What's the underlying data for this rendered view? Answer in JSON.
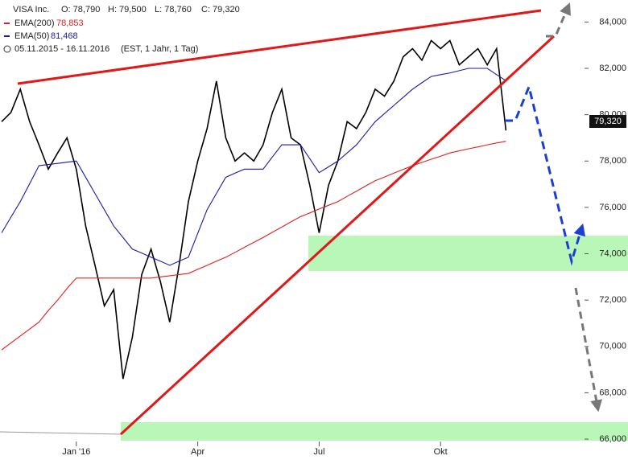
{
  "header": {
    "symbol": "VISA Inc.",
    "ohlc": [
      "O: 78,790",
      "H: 79,500",
      "L: 78,760",
      "C: 79,320"
    ],
    "close": "79,320",
    "range": "05.11.2015 - 16.11.2016",
    "info": "(EST, 1 Jahr, 1 Tag)",
    "ema200_label": "EMA(200)",
    "ema200_value": "78,853",
    "ema50_label": "EMA(50)",
    "ema50_value": "81,468"
  },
  "chart_data": {
    "type": "line",
    "categories": [
      null,
      null,
      null,
      null,
      null,
      null,
      null,
      null,
      "Jan '16",
      null,
      null,
      null,
      null,
      null,
      null,
      null,
      null,
      null,
      null,
      null,
      null,
      "Apr",
      null,
      null,
      null,
      null,
      null,
      null,
      null,
      null,
      null,
      null,
      null,
      null,
      "Jul",
      null,
      null,
      null,
      null,
      null,
      null,
      null,
      null,
      null,
      null,
      null,
      null,
      "Okt",
      null,
      null,
      null,
      null,
      null,
      null,
      null
    ],
    "series": [
      {
        "name": "VISA Inc.",
        "color": "#000000",
        "values": [
          79700,
          80100,
          81100,
          79700,
          78700,
          77650,
          78350,
          79000,
          77650,
          75200,
          73500,
          71750,
          72450,
          68600,
          70400,
          73100,
          74200,
          72800,
          71050,
          73500,
          76250,
          78000,
          79400,
          81450,
          79000,
          78000,
          78350,
          78000,
          78700,
          80100,
          81100,
          79000,
          78700,
          76950,
          74900,
          76950,
          78000,
          79700,
          79400,
          80100,
          81100,
          80800,
          81450,
          82500,
          82850,
          82350,
          83200,
          82850,
          83200,
          82150,
          82500,
          82850,
          82150,
          82850,
          79320
        ]
      },
      {
        "name": "EMA(200)",
        "color": "#e02020",
        "values": [
          69850,
          70150,
          70450,
          70750,
          71050,
          71550,
          72000,
          72500,
          72950,
          72950,
          72950,
          72950,
          72950,
          72950,
          72950,
          72950,
          72950,
          73000,
          73050,
          73100,
          73150,
          73330,
          73500,
          73680,
          73850,
          74060,
          74280,
          74490,
          74700,
          74930,
          75150,
          75380,
          75600,
          75760,
          75930,
          76090,
          76250,
          76480,
          76700,
          76930,
          77150,
          77310,
          77480,
          77640,
          77800,
          77940,
          78080,
          78210,
          78350,
          78440,
          78530,
          78610,
          78700,
          78780,
          78853
        ]
      },
      {
        "name": "EMA(50)",
        "color": "#1a1aa8",
        "values": [
          74900,
          75580,
          76250,
          77020,
          77800,
          77850,
          77900,
          77950,
          78000,
          77300,
          76600,
          75900,
          75200,
          74700,
          74200,
          74030,
          73850,
          73680,
          73500,
          73680,
          73850,
          74880,
          75900,
          76600,
          77300,
          77480,
          77650,
          77650,
          77650,
          78180,
          78700,
          78700,
          78700,
          78100,
          77500,
          77750,
          78000,
          78350,
          78700,
          79200,
          79700,
          80050,
          80400,
          80750,
          81100,
          81380,
          81650,
          81730,
          81800,
          81900,
          82000,
          82000,
          82000,
          81730,
          81468
        ]
      }
    ],
    "ylim": [
      65100,
      84950
    ],
    "yticks": [
      {
        "value": 66000,
        "label": "66,000"
      },
      {
        "value": 68000,
        "label": "68,000"
      },
      {
        "value": 70000,
        "label": "70,000"
      },
      {
        "value": 72000,
        "label": "72,000"
      },
      {
        "value": 74000,
        "label": "74,000"
      },
      {
        "value": 76000,
        "label": "76,000"
      },
      {
        "value": 78000,
        "label": "78,000"
      },
      {
        "value": 80000,
        "label": "80,000"
      },
      {
        "value": 82000,
        "label": "82,000"
      },
      {
        "value": 84000,
        "label": "84,000"
      }
    ]
  }
}
